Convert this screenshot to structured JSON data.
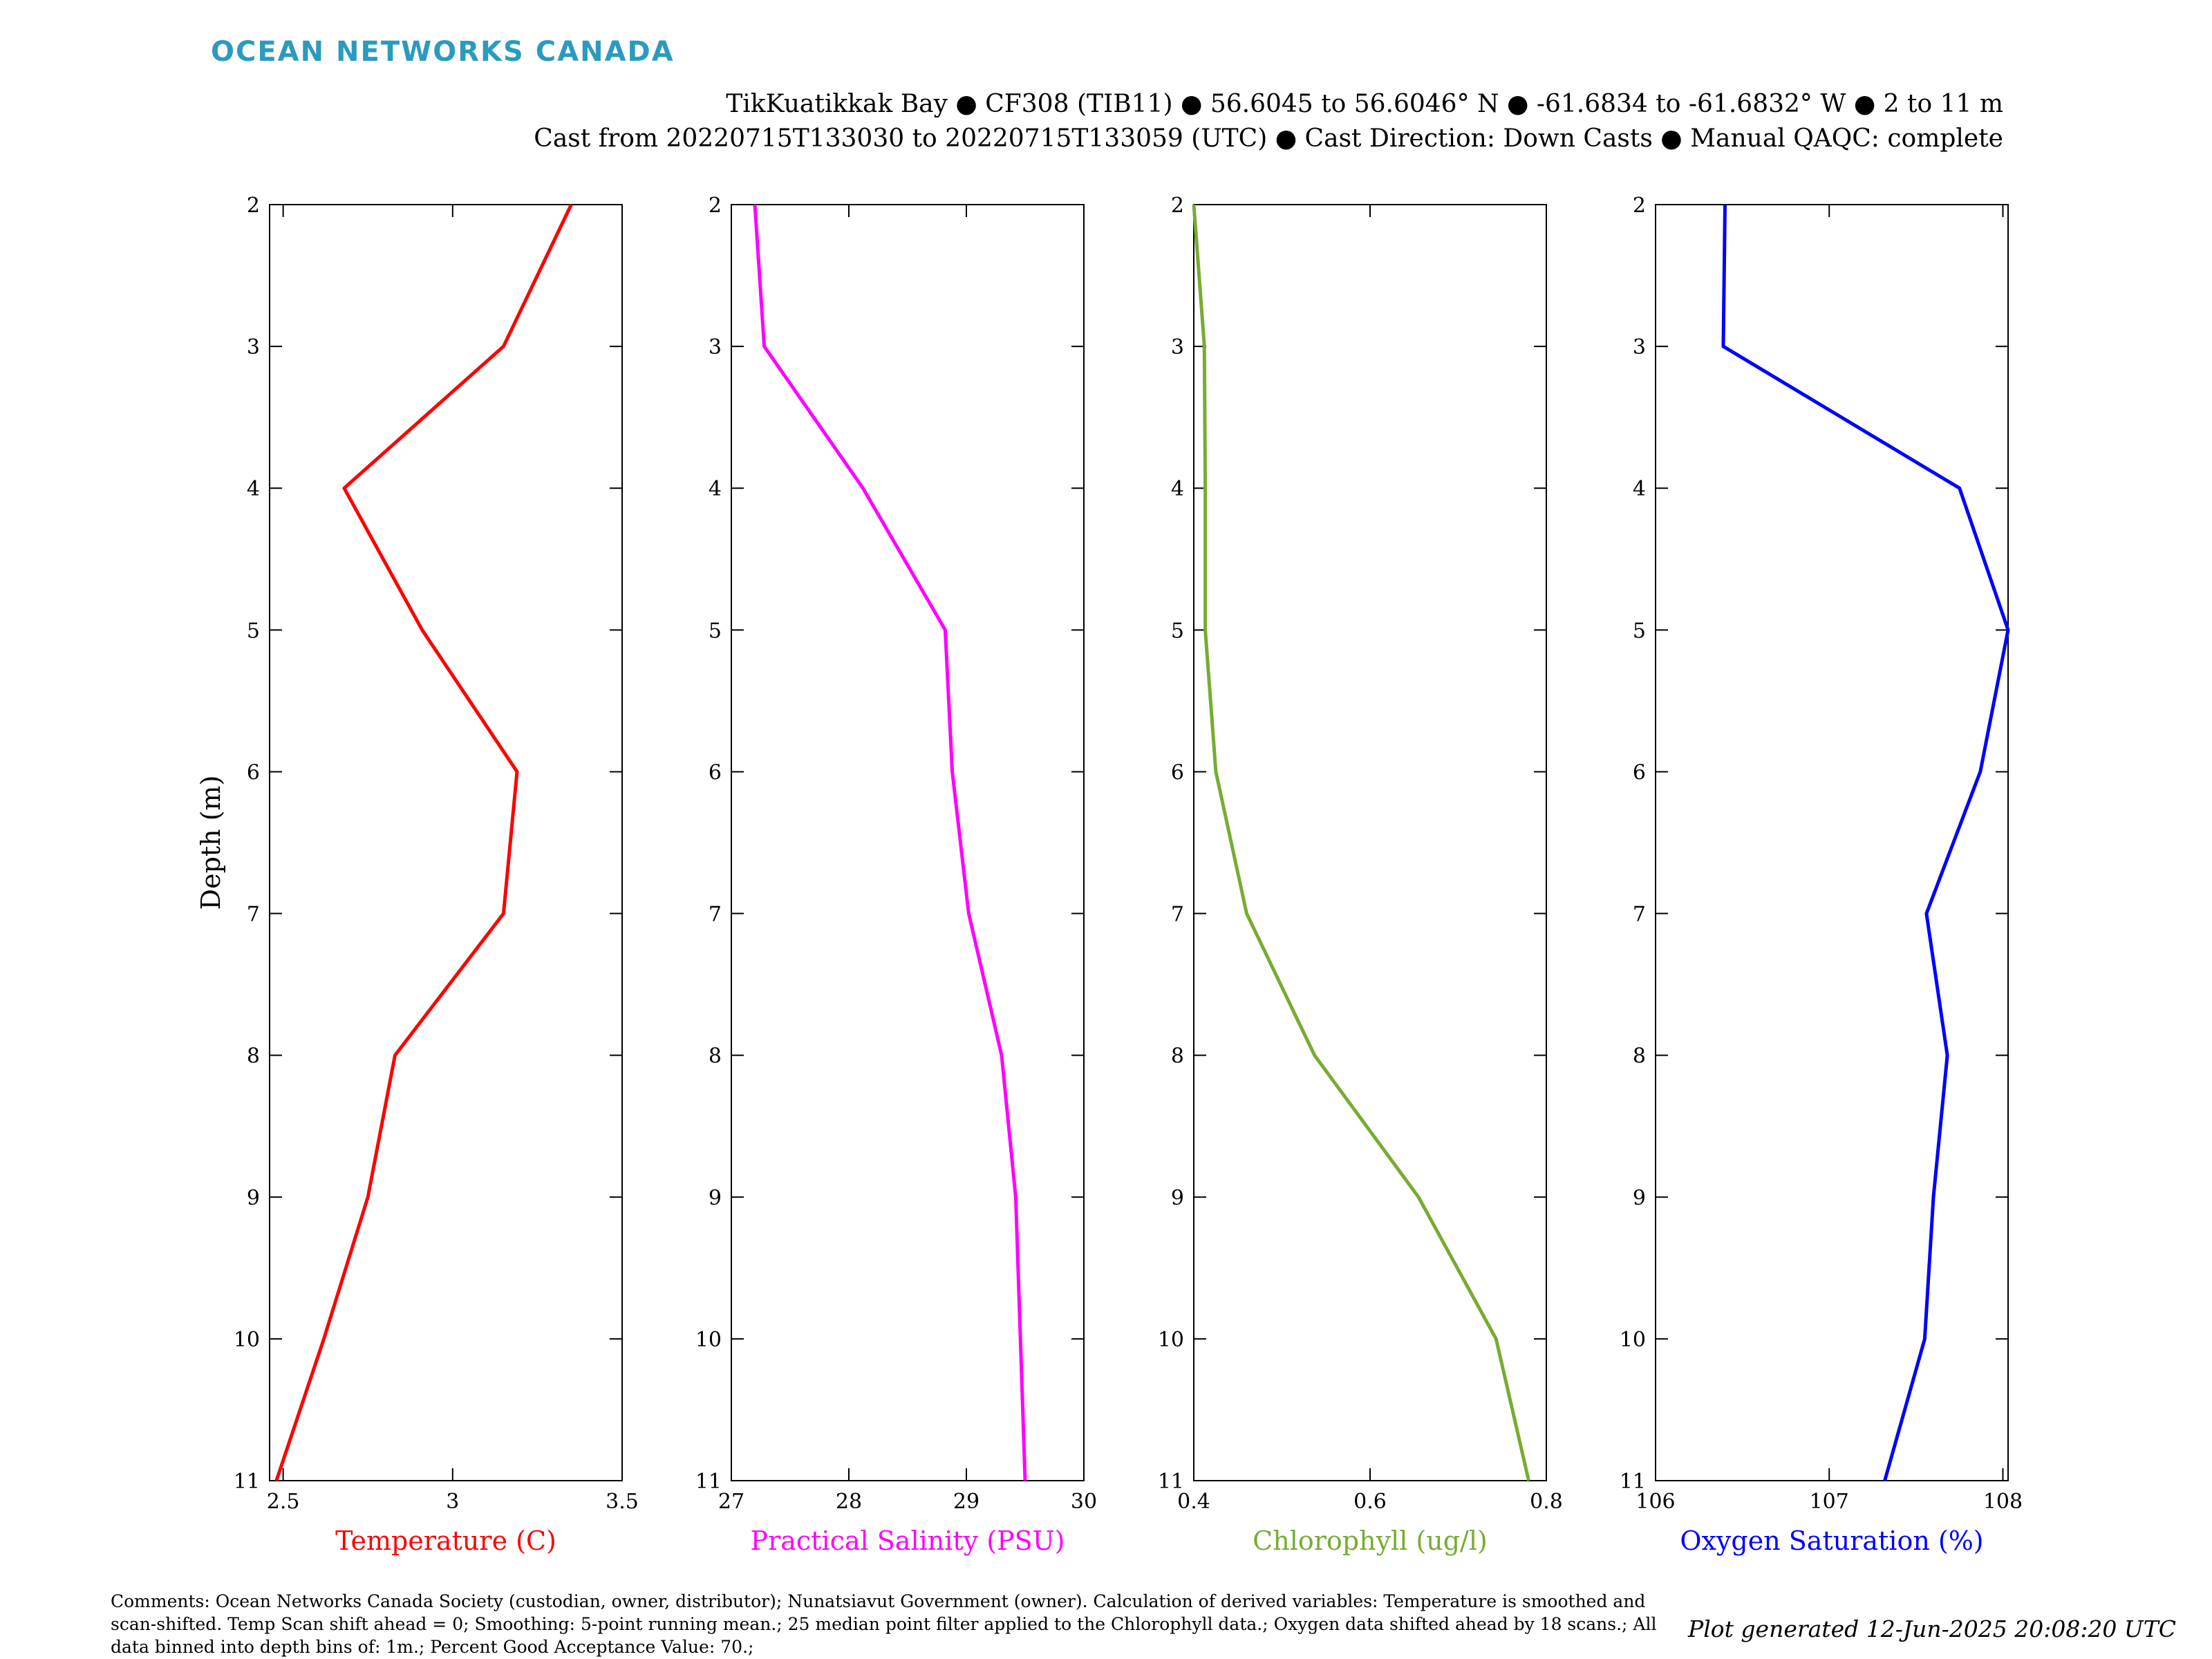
{
  "header": {
    "brand": "OCEAN NETWORKS CANADA",
    "title_line1": "TikKuatikkak Bay ● CF308 (TIB11) ● 56.6045 to 56.6046° N ● -61.6834 to -61.6832° W ● 2 to 11 m",
    "title_line2": "Cast from 20220715T133030 to 20220715T133059 (UTC) ● Cast Direction: Down Casts ● Manual QAQC: complete"
  },
  "footer": {
    "comments": "Comments: Ocean Networks Canada Society (custodian, owner, distributor); Nunatsiavut Government (owner). Calculation of derived variables: Temperature is smoothed and scan-shifted. Temp Scan shift ahead = 0; Smoothing: 5-point running mean.; 25 median point filter applied to the Chlorophyll data.; Oxygen data shifted ahead by 18 scans.; All data binned into depth bins of: 1m.; Percent Good Acceptance Value: 70.;",
    "generated": "Plot generated 12-Jun-2025 20:08:20 UTC"
  },
  "chart_data": [
    {
      "type": "line",
      "orientation": "profile",
      "xlabel": "Temperature (C)",
      "ylabel": "Depth (m)",
      "color": "#ff0000",
      "xlim": [
        2.46,
        3.5
      ],
      "xticks": [
        2.5,
        3,
        3.5
      ],
      "xticklabels": [
        "2.5",
        "3",
        "3.5"
      ],
      "ylim": [
        2,
        11
      ],
      "yticks": [
        2,
        3,
        4,
        5,
        6,
        7,
        8,
        9,
        10,
        11
      ],
      "yticklabels": [
        "2",
        "3",
        "4",
        "5",
        "6",
        "7",
        "8",
        "9",
        "10",
        "11"
      ],
      "y_reversed": true,
      "depth": [
        2,
        3,
        4,
        5,
        6,
        7,
        8,
        9,
        10,
        11
      ],
      "values": [
        3.35,
        3.15,
        2.68,
        2.91,
        3.19,
        3.15,
        2.83,
        2.75,
        2.62,
        2.48
      ]
    },
    {
      "type": "line",
      "orientation": "profile",
      "xlabel": "Practical Salinity (PSU)",
      "color": "#ff00ff",
      "xlim": [
        27,
        30
      ],
      "xticks": [
        27,
        28,
        29,
        30
      ],
      "xticklabels": [
        "27",
        "28",
        "29",
        "30"
      ],
      "ylim": [
        2,
        11
      ],
      "yticks": [
        2,
        3,
        4,
        5,
        6,
        7,
        8,
        9,
        10,
        11
      ],
      "yticklabels": [
        "2",
        "3",
        "4",
        "5",
        "6",
        "7",
        "8",
        "9",
        "10",
        "11"
      ],
      "y_reversed": true,
      "depth": [
        2,
        3,
        4,
        5,
        6,
        7,
        8,
        9,
        10,
        11
      ],
      "values": [
        27.2,
        27.28,
        28.12,
        28.82,
        28.88,
        29.02,
        29.3,
        29.42,
        29.46,
        29.5
      ]
    },
    {
      "type": "line",
      "orientation": "profile",
      "xlabel": "Chlorophyll (ug/l)",
      "color": "#77ac30",
      "xlim": [
        0.4,
        0.8
      ],
      "xticks": [
        0.4,
        0.6,
        0.8
      ],
      "xticklabels": [
        "0.4",
        "0.6",
        "0.8"
      ],
      "ylim": [
        2,
        11
      ],
      "yticks": [
        2,
        3,
        4,
        5,
        6,
        7,
        8,
        9,
        10,
        11
      ],
      "yticklabels": [
        "2",
        "3",
        "4",
        "5",
        "6",
        "7",
        "8",
        "9",
        "10",
        "11"
      ],
      "y_reversed": true,
      "depth": [
        2,
        3,
        4,
        5,
        6,
        7,
        8,
        9,
        10,
        11
      ],
      "values": [
        0.4,
        0.412,
        0.413,
        0.413,
        0.425,
        0.46,
        0.537,
        0.655,
        0.743,
        0.78
      ]
    },
    {
      "type": "line",
      "orientation": "profile",
      "xlabel": "Oxygen Saturation (%)",
      "color": "#0000ff",
      "xlim": [
        106,
        108.03
      ],
      "xticks": [
        106,
        107,
        108
      ],
      "xticklabels": [
        "106",
        "107",
        "108"
      ],
      "ylim": [
        2,
        11
      ],
      "yticks": [
        2,
        3,
        4,
        5,
        6,
        7,
        8,
        9,
        10,
        11
      ],
      "yticklabels": [
        "2",
        "3",
        "4",
        "5",
        "6",
        "7",
        "8",
        "9",
        "10",
        "11"
      ],
      "y_reversed": true,
      "depth": [
        2,
        3,
        4,
        5,
        6,
        7,
        8,
        9,
        10,
        11
      ],
      "values": [
        106.4,
        106.39,
        107.75,
        108.03,
        107.87,
        107.56,
        107.68,
        107.6,
        107.55,
        107.32
      ]
    }
  ]
}
